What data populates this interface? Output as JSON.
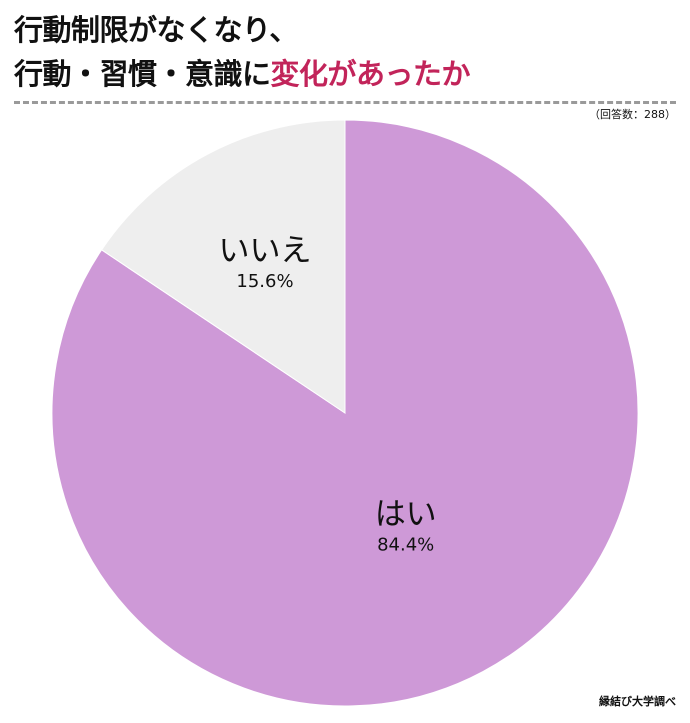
{
  "title": {
    "line1": "行動制限がなくなり、",
    "line2_prefix": "行動・習慣・意識に",
    "line2_accent": "変化があったか"
  },
  "respondents": "（回答数：288）",
  "source": "縁結び大学調べ",
  "colors": {
    "accent_text": "#c2245a",
    "yes_slice": "#ce99d7",
    "no_slice": "#eeeeee"
  },
  "chart_data": {
    "type": "pie",
    "slices": [
      {
        "name": "はい",
        "value": 84.4,
        "label": "84.4%",
        "color": "#ce99d7"
      },
      {
        "name": "いいえ",
        "value": 15.6,
        "label": "15.6%",
        "color": "#eeeeee"
      }
    ],
    "start": "12 o'clock",
    "direction": "clockwise"
  }
}
